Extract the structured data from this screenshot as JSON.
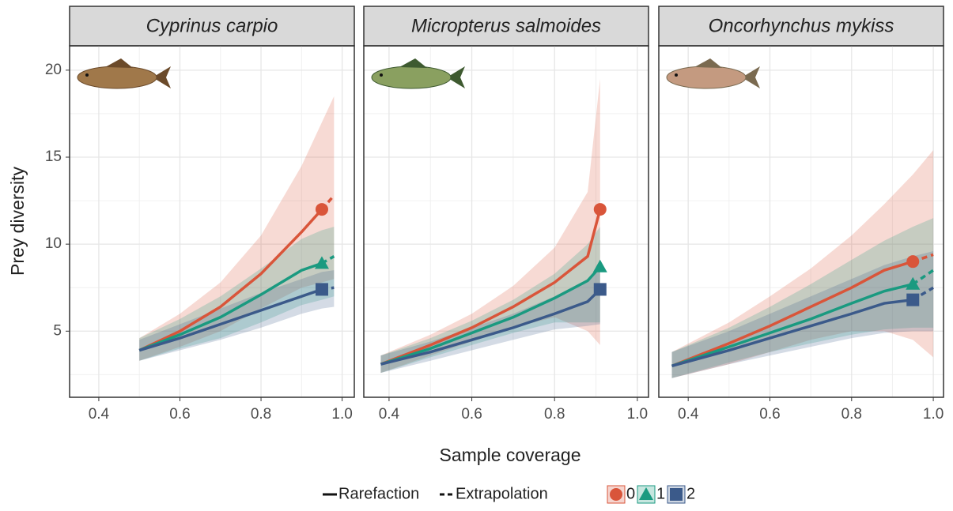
{
  "x_label": "Sample coverage",
  "y_label": "Prey diversity",
  "legend_line_types": [
    "Rarefaction",
    "Extrapolation"
  ],
  "chart_data": [
    {
      "type": "line",
      "title": "Cyprinus carpio",
      "x": [
        0.5,
        0.6,
        0.7,
        0.8,
        0.9,
        0.95,
        0.98
      ],
      "xlim": [
        0.328,
        1.03
      ],
      "xticks": [
        0.4,
        0.6,
        0.8,
        {
          "value": 1,
          "label": "1.0"
        }
      ],
      "ylim": [
        1.2,
        21.4
      ],
      "yticks": [
        5,
        10,
        15,
        20
      ],
      "grid": true,
      "series": [
        {
          "name": "0",
          "color": "#d9553a",
          "values": [
            3.9,
            5.0,
            6.4,
            8.3,
            10.7,
            12.0,
            null
          ],
          "extrapolation": [
            null,
            null,
            null,
            null,
            null,
            12.0,
            12.8
          ],
          "upper": [
            4.6,
            6.0,
            7.8,
            10.5,
            14.5,
            17.0,
            18.5
          ],
          "lower": [
            3.3,
            4.1,
            5.0,
            6.3,
            7.5,
            7.8,
            8.0
          ]
        },
        {
          "name": "1",
          "color": "#1a9a80",
          "values": [
            3.9,
            4.8,
            5.8,
            7.1,
            8.5,
            8.9,
            null
          ],
          "extrapolation": [
            null,
            null,
            null,
            null,
            null,
            8.9,
            9.3
          ],
          "upper": [
            4.6,
            5.7,
            7.0,
            8.6,
            10.3,
            10.8,
            11.0
          ],
          "lower": [
            3.3,
            4.0,
            4.6,
            5.5,
            6.5,
            6.8,
            7.0
          ]
        },
        {
          "name": "2",
          "color": "#3b5a8a",
          "values": [
            3.9,
            4.6,
            5.4,
            6.2,
            7.0,
            7.4,
            null
          ],
          "extrapolation": [
            null,
            null,
            null,
            null,
            null,
            7.4,
            7.5
          ],
          "upper": [
            4.5,
            5.4,
            6.3,
            7.2,
            8.0,
            8.4,
            8.5
          ],
          "lower": [
            3.3,
            3.9,
            4.5,
            5.2,
            6.0,
            6.3,
            6.4
          ]
        }
      ]
    },
    {
      "type": "line",
      "title": "Micropterus salmoides",
      "x": [
        0.38,
        0.5,
        0.6,
        0.7,
        0.8,
        0.88,
        0.91
      ],
      "xlim": [
        0.339,
        1.027
      ],
      "xticks": [
        0.4,
        0.6,
        0.8,
        {
          "value": 1,
          "label": "1.0"
        }
      ],
      "ylim": [
        1.2,
        21.4
      ],
      "yticks": [
        5,
        10,
        15,
        20
      ],
      "grid": true,
      "series": [
        {
          "name": "0",
          "color": "#d9553a",
          "values": [
            3.1,
            4.2,
            5.2,
            6.4,
            7.8,
            9.3,
            12.0
          ],
          "upper": [
            3.6,
            4.8,
            6.0,
            7.6,
            9.8,
            13.0,
            19.5
          ],
          "lower": [
            2.6,
            3.6,
            4.4,
            5.2,
            5.8,
            5.0,
            4.2
          ]
        },
        {
          "name": "1",
          "color": "#1a9a80",
          "values": [
            3.1,
            4.0,
            4.9,
            5.8,
            6.9,
            7.9,
            8.7
          ],
          "upper": [
            3.6,
            4.6,
            5.6,
            6.8,
            8.3,
            10.0,
            11.0
          ],
          "lower": [
            2.6,
            3.5,
            4.2,
            4.9,
            5.5,
            5.5,
            5.5
          ]
        },
        {
          "name": "2",
          "color": "#3b5a8a",
          "values": [
            3.1,
            3.8,
            4.5,
            5.2,
            6.0,
            6.7,
            7.4
          ],
          "upper": [
            3.6,
            4.4,
            5.2,
            6.0,
            7.0,
            8.0,
            8.5
          ],
          "lower": [
            2.6,
            3.3,
            3.9,
            4.5,
            5.1,
            5.3,
            5.4
          ]
        }
      ]
    },
    {
      "type": "line",
      "title": "Oncorhynchus mykiss",
      "x": [
        0.36,
        0.5,
        0.6,
        0.7,
        0.8,
        0.88,
        0.95,
        1.0
      ],
      "xlim": [
        0.328,
        1.025
      ],
      "xticks": [
        0.4,
        0.6,
        0.8,
        {
          "value": 1,
          "label": "1.0"
        }
      ],
      "ylim": [
        1.2,
        21.4
      ],
      "yticks": [
        5,
        10,
        15,
        20
      ],
      "grid": true,
      "series": [
        {
          "name": "0",
          "color": "#d9553a",
          "values": [
            3.0,
            4.3,
            5.3,
            6.4,
            7.5,
            8.5,
            9.0,
            null
          ],
          "extrapolation": [
            null,
            null,
            null,
            null,
            null,
            null,
            9.0,
            9.4
          ],
          "upper": [
            3.8,
            5.5,
            7.0,
            8.6,
            10.5,
            12.3,
            14.0,
            15.4
          ],
          "lower": [
            2.3,
            3.1,
            3.8,
            4.5,
            5.0,
            5.0,
            4.5,
            3.5
          ]
        },
        {
          "name": "1",
          "color": "#1a9a80",
          "values": [
            3.0,
            4.1,
            4.9,
            5.7,
            6.6,
            7.3,
            7.7,
            null
          ],
          "extrapolation": [
            null,
            null,
            null,
            null,
            null,
            null,
            7.7,
            8.5
          ],
          "upper": [
            3.8,
            5.2,
            6.4,
            7.7,
            9.1,
            10.2,
            11.0,
            11.5
          ],
          "lower": [
            2.3,
            3.2,
            3.8,
            4.3,
            4.8,
            5.1,
            5.2,
            5.2
          ]
        },
        {
          "name": "2",
          "color": "#3b5a8a",
          "values": [
            3.0,
            3.9,
            4.6,
            5.3,
            6.0,
            6.6,
            6.8,
            null
          ],
          "extrapolation": [
            null,
            null,
            null,
            null,
            null,
            null,
            6.8,
            7.5
          ],
          "upper": [
            3.8,
            5.0,
            6.0,
            7.0,
            8.0,
            8.8,
            9.3,
            9.6
          ],
          "lower": [
            2.3,
            3.1,
            3.6,
            4.1,
            4.6,
            4.9,
            5.0,
            5.0
          ]
        }
      ]
    }
  ]
}
